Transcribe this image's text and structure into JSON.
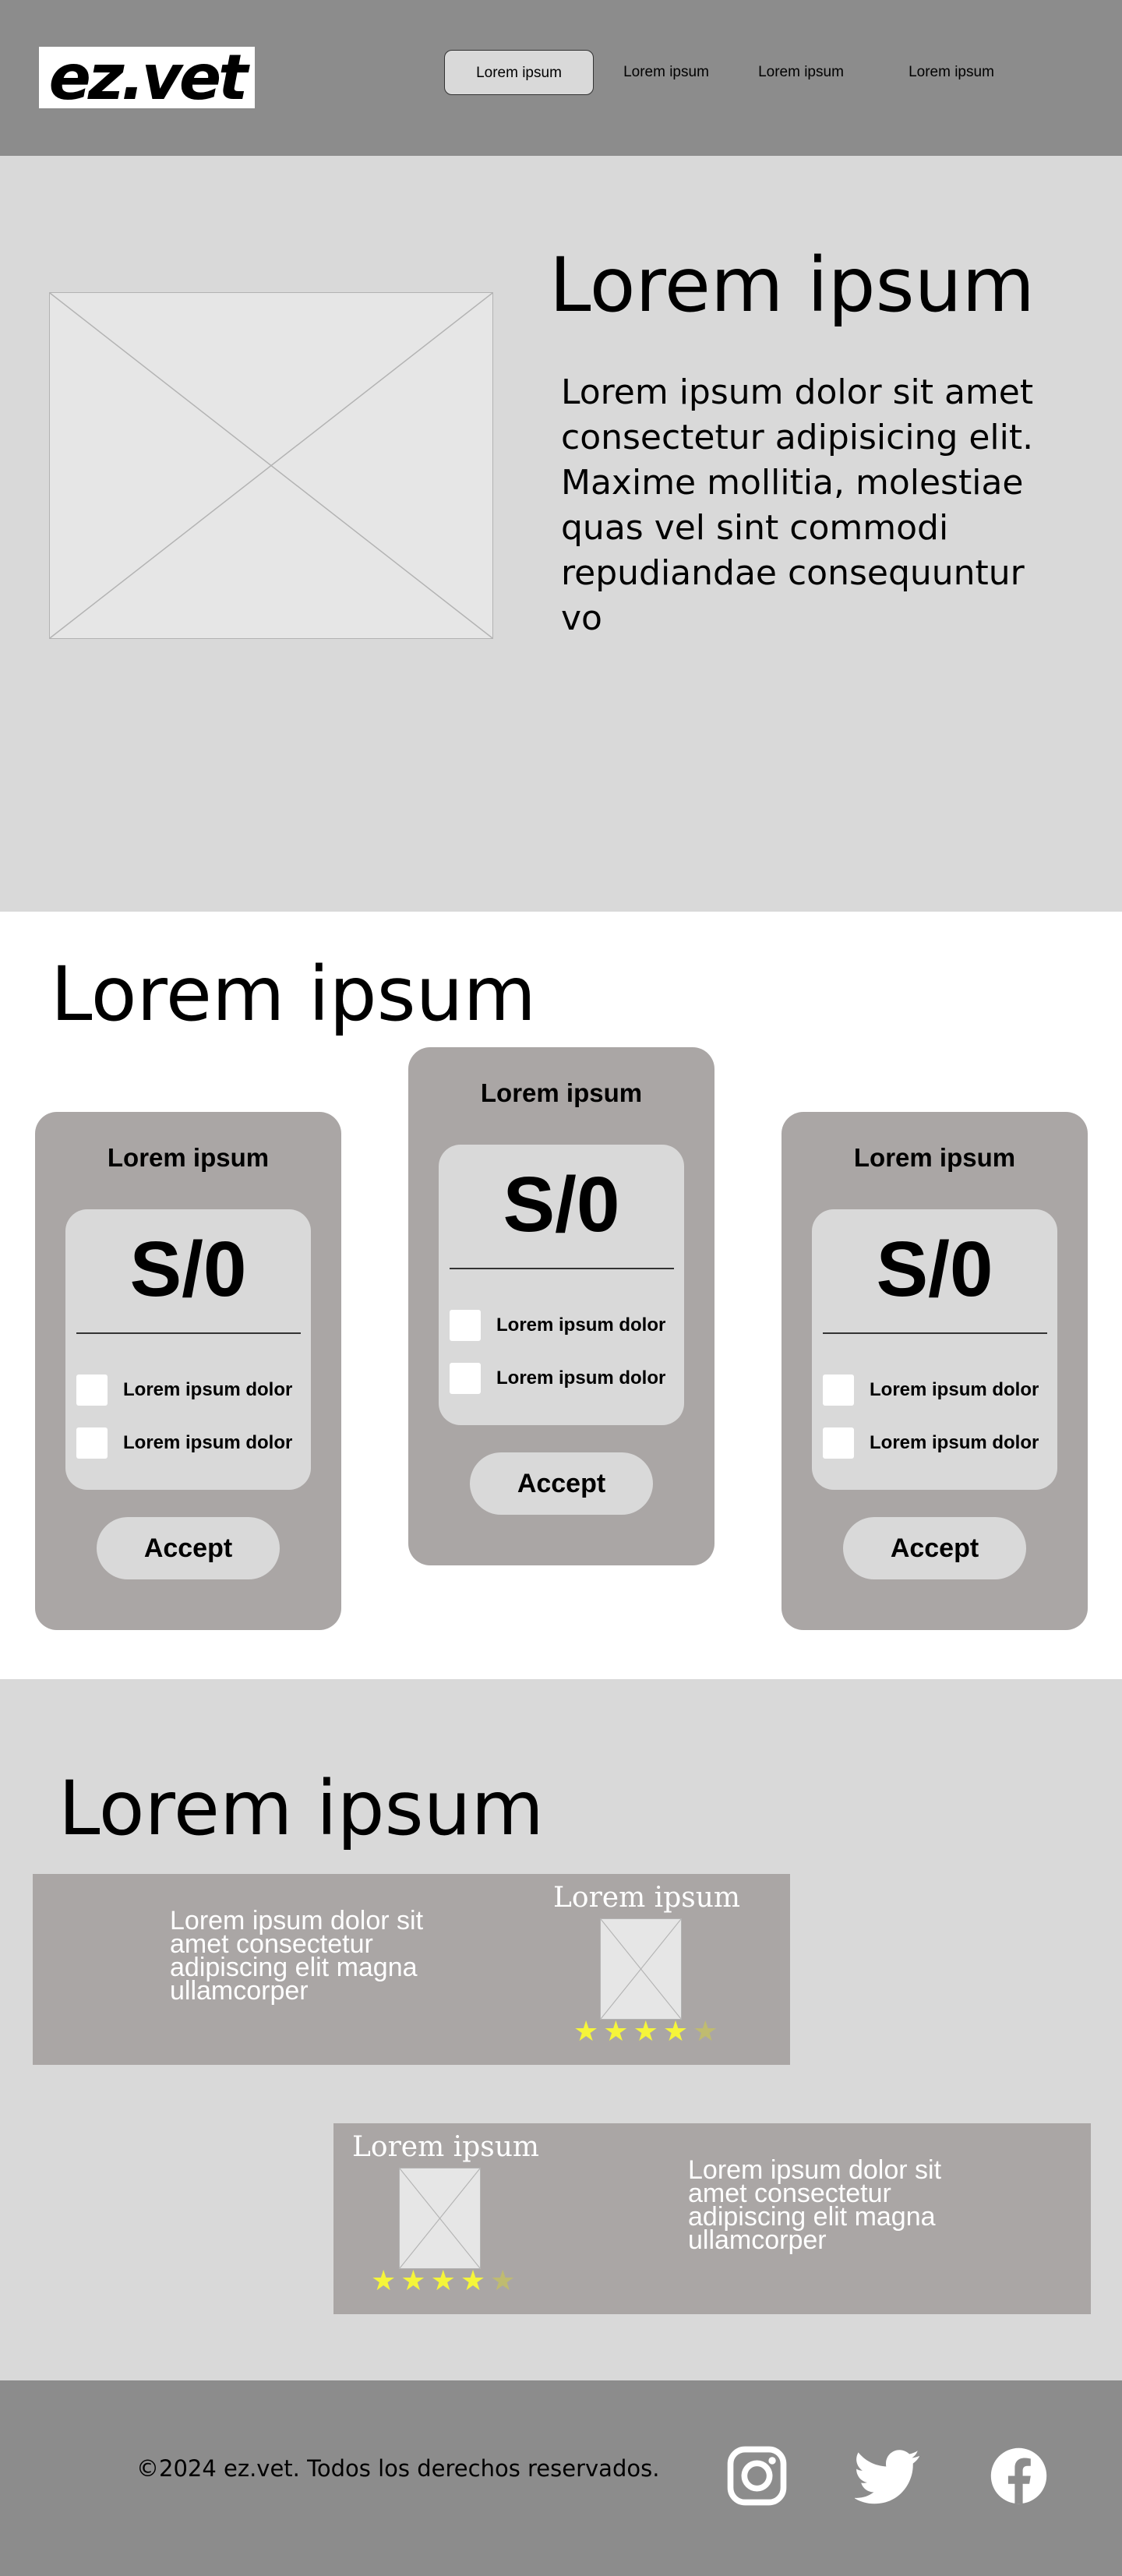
{
  "header": {
    "logo_text": "ez.vet",
    "nav": [
      "Lorem ipsum",
      "Lorem ipsum",
      "Lorem ipsum",
      "Lorem ipsum"
    ]
  },
  "hero": {
    "title": "Lorem ipsum",
    "text": "Lorem ipsum dolor sit amet consectetur adipisicing elit. Maxime mollitia, molestiae quas vel sint commodi repudiandae consequuntur vo"
  },
  "pricing": {
    "title": "Lorem ipsum",
    "cards": [
      {
        "title": "Lorem ipsum",
        "price": "S/0",
        "features": [
          "Lorem ipsum dolor",
          "Lorem ipsum dolor"
        ],
        "button": "Accept"
      },
      {
        "title": "Lorem ipsum",
        "price": "S/0",
        "features": [
          "Lorem ipsum dolor",
          "Lorem ipsum dolor"
        ],
        "button": "Accept"
      },
      {
        "title": "Lorem ipsum",
        "price": "S/0",
        "features": [
          "Lorem ipsum dolor",
          "Lorem ipsum dolor"
        ],
        "button": "Accept"
      }
    ]
  },
  "testimonials": {
    "title": "Lorem ipsum",
    "reviews": [
      {
        "name": "Lorem ipsum",
        "text": "Lorem ipsum dolor sit amet consectetur adipiscing elit magna ullamcorper",
        "rating": 4.5
      },
      {
        "name": "Lorem ipsum",
        "text": "Lorem ipsum dolor sit amet consectetur adipiscing elit magna ullamcorper",
        "rating": 4.5
      }
    ],
    "star_color": "#f5f53a"
  },
  "footer": {
    "copyright": "©2024 ez.vet. Todos los derechos reservados.",
    "social": [
      "instagram-icon",
      "twitter-icon",
      "facebook-icon"
    ]
  },
  "colors": {
    "header_bg": "#8c8c8c",
    "section_bg": "#d9d9d9",
    "card_bg": "#aaa6a5"
  }
}
